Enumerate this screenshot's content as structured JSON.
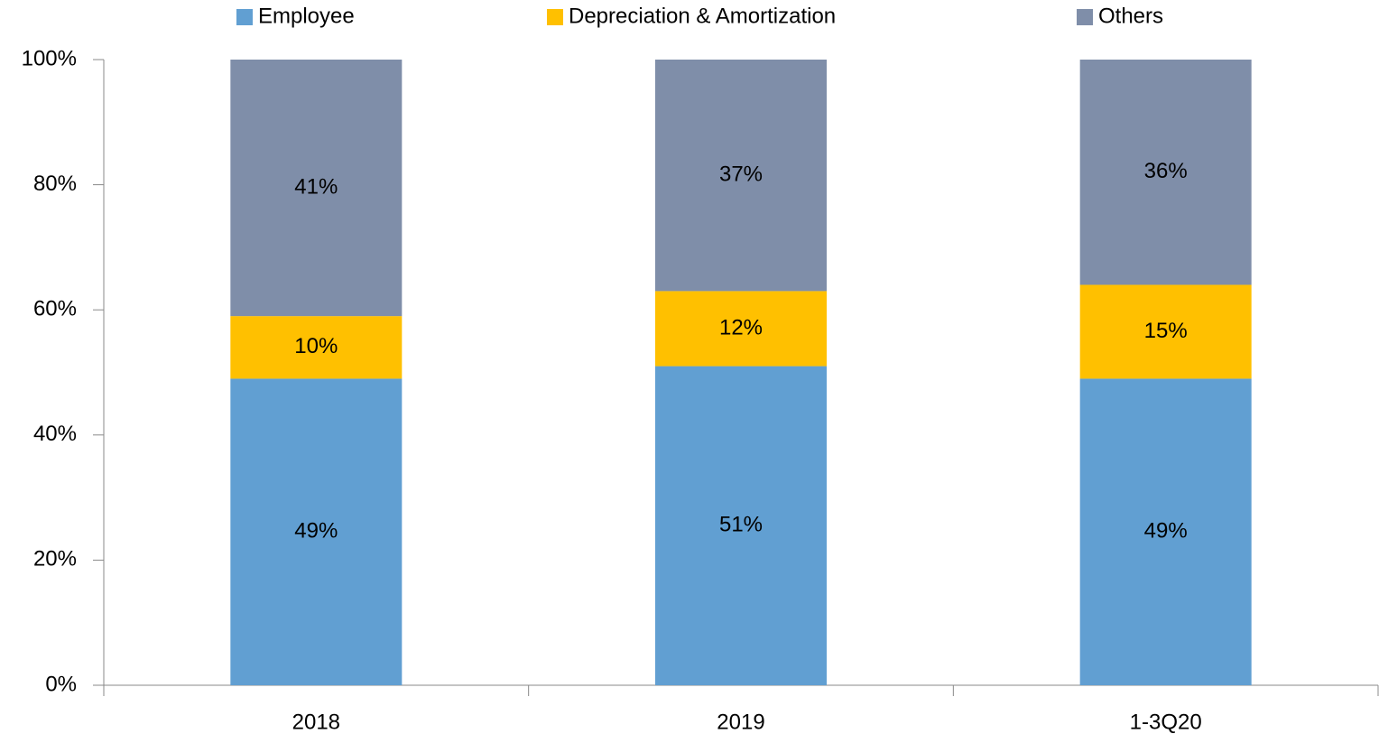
{
  "chart_data": {
    "type": "stacked_bar",
    "categories": [
      "2018",
      "2019",
      "1-3Q20"
    ],
    "series": [
      {
        "name": "Employee",
        "color": "#619fd2",
        "values": [
          49,
          51,
          49
        ],
        "value_labels": [
          "49%",
          "51%",
          "49%"
        ]
      },
      {
        "name": "Depreciation & Amortization",
        "color": "#ffc000",
        "values": [
          10,
          12,
          15
        ],
        "value_labels": [
          "10%",
          "12%",
          "15%"
        ]
      },
      {
        "name": "Others",
        "color": "#7f8ea9",
        "values": [
          41,
          37,
          36
        ],
        "value_labels": [
          "41%",
          "37%",
          "36%"
        ]
      }
    ],
    "ylim": [
      0,
      100
    ],
    "yticks": [
      {
        "value": 0,
        "label": "0%"
      },
      {
        "value": 20,
        "label": "20%"
      },
      {
        "value": 40,
        "label": "40%"
      },
      {
        "value": 60,
        "label": "60%"
      },
      {
        "value": 80,
        "label": "80%"
      },
      {
        "value": 100,
        "label": "100%"
      }
    ],
    "legend": "top",
    "grid": false
  }
}
